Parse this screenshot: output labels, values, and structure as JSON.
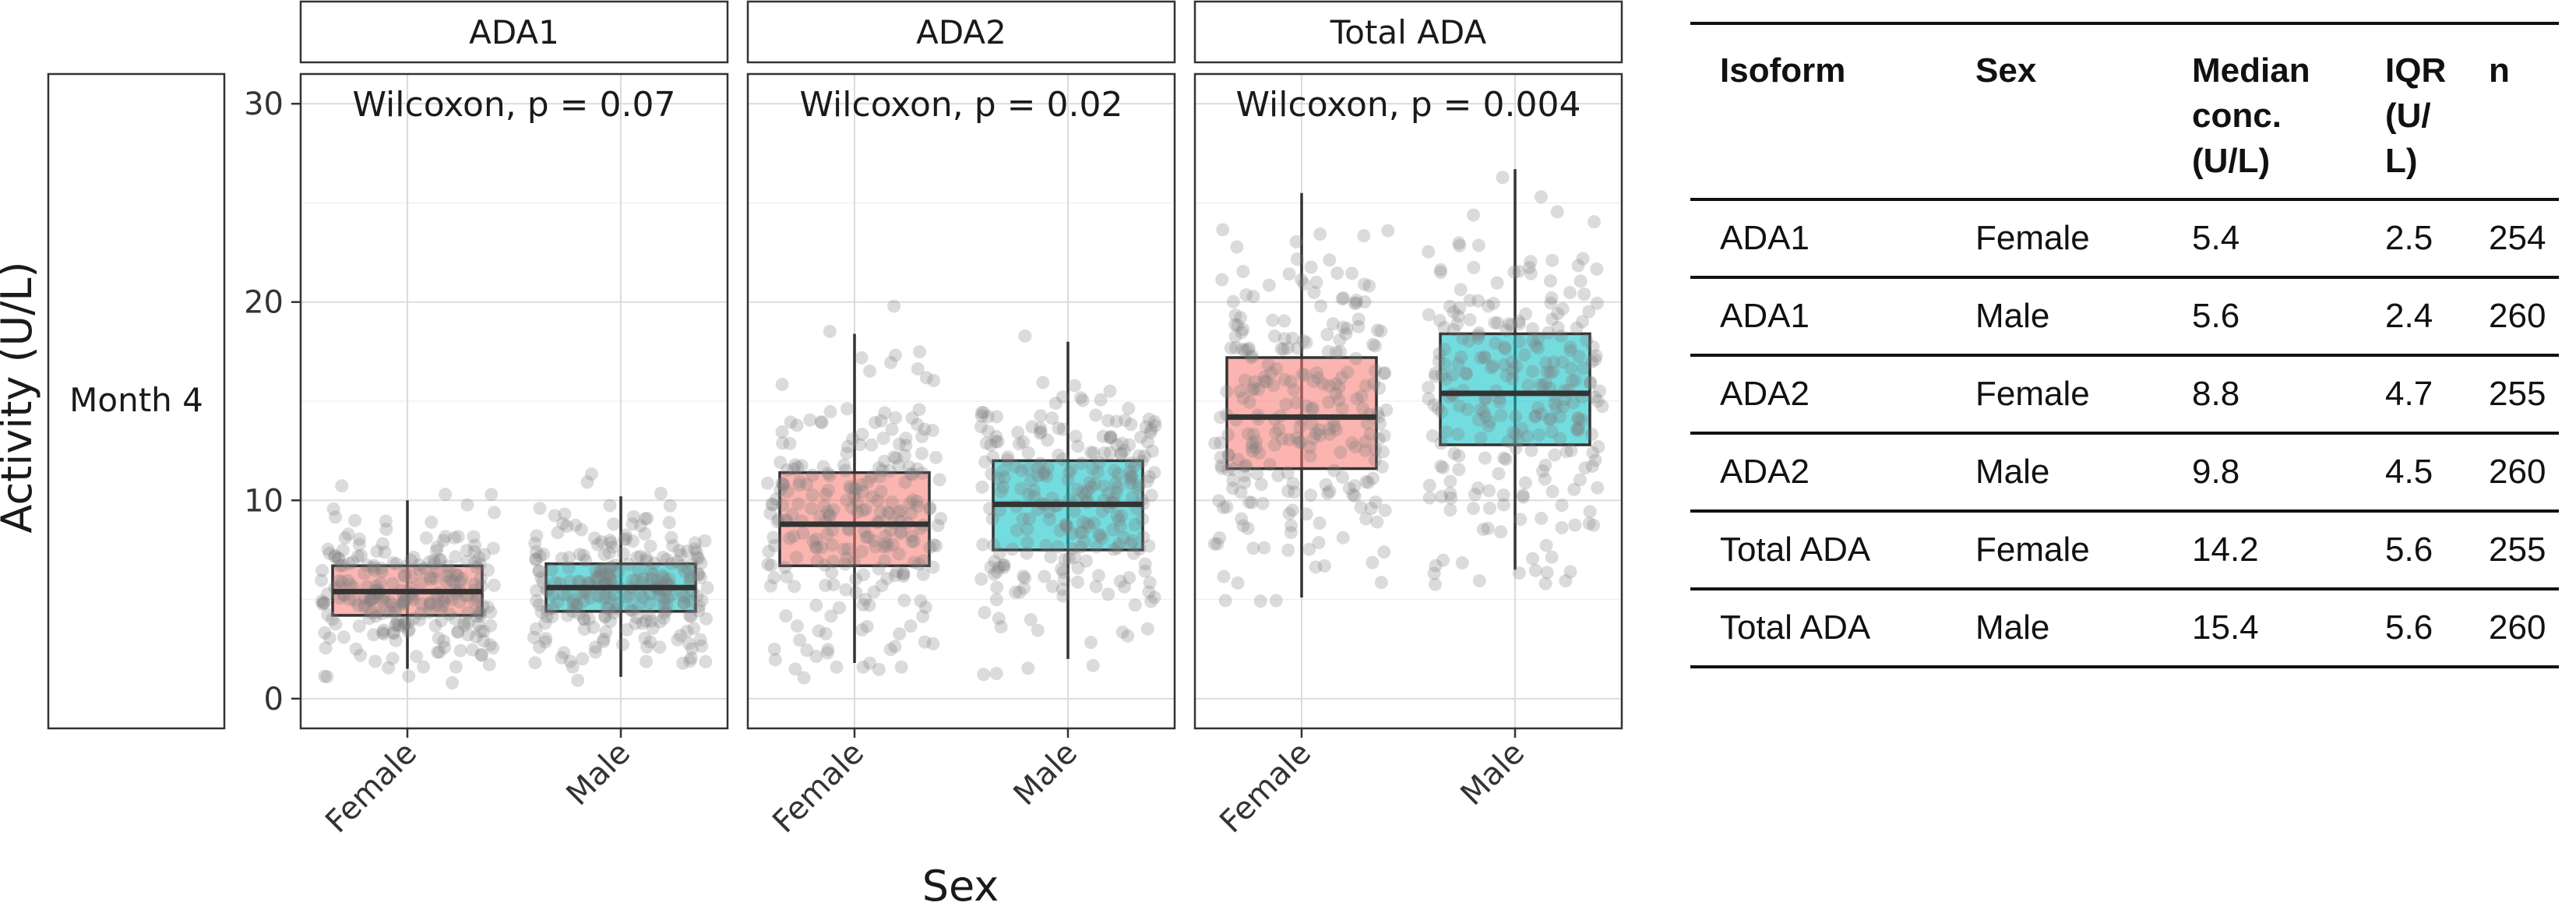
{
  "row_strip": "Month 4",
  "chart_data": {
    "type": "boxplot",
    "ylabel": "Activity (U/L)",
    "xlabel": "Sex",
    "ylim": [
      -1.5,
      31.5
    ],
    "yticks": [
      0,
      10,
      20,
      30
    ],
    "categories": [
      "Female",
      "Male"
    ],
    "group_colors": {
      "Female": "#f8766d",
      "Male": "#00bfc4"
    },
    "panels": [
      {
        "title": "ADA1",
        "annotation": "Wilcoxon, p = 0.07",
        "boxes": [
          {
            "group": "Female",
            "whisker_low": 1.5,
            "q1": 4.2,
            "median": 5.4,
            "q3": 6.7,
            "whisker_high": 10.0,
            "n": 254
          },
          {
            "group": "Male",
            "whisker_low": 1.1,
            "q1": 4.4,
            "median": 5.6,
            "q3": 6.8,
            "whisker_high": 10.2,
            "n": 260
          }
        ]
      },
      {
        "title": "ADA2",
        "annotation": "Wilcoxon, p = 0.02",
        "boxes": [
          {
            "group": "Female",
            "whisker_low": 1.8,
            "q1": 6.7,
            "median": 8.8,
            "q3": 11.4,
            "whisker_high": 18.4,
            "n": 255
          },
          {
            "group": "Male",
            "whisker_low": 2.0,
            "q1": 7.5,
            "median": 9.8,
            "q3": 12.0,
            "whisker_high": 18.0,
            "n": 260
          }
        ]
      },
      {
        "title": "Total ADA",
        "annotation": "Wilcoxon, p = 0.004",
        "boxes": [
          {
            "group": "Female",
            "whisker_low": 5.1,
            "q1": 11.6,
            "median": 14.2,
            "q3": 17.2,
            "whisker_high": 25.5,
            "n": 255
          },
          {
            "group": "Male",
            "whisker_low": 6.5,
            "q1": 12.8,
            "median": 15.4,
            "q3": 18.4,
            "whisker_high": 26.7,
            "n": 260
          }
        ]
      }
    ]
  },
  "table": {
    "headers": [
      "Isoform",
      "Sex",
      "Median conc. (U/L)",
      "IQR (U/ L)",
      "n"
    ],
    "rows": [
      [
        "ADA1",
        "Female",
        "5.4",
        "2.5",
        "254"
      ],
      [
        "ADA1",
        "Male",
        "5.6",
        "2.4",
        "260"
      ],
      [
        "ADA2",
        "Female",
        "8.8",
        "4.7",
        "255"
      ],
      [
        "ADA2",
        "Male",
        "9.8",
        "4.5",
        "260"
      ],
      [
        "Total ADA",
        "Female",
        "14.2",
        "5.6",
        "255"
      ],
      [
        "Total ADA",
        "Male",
        "15.4",
        "5.6",
        "260"
      ]
    ]
  }
}
